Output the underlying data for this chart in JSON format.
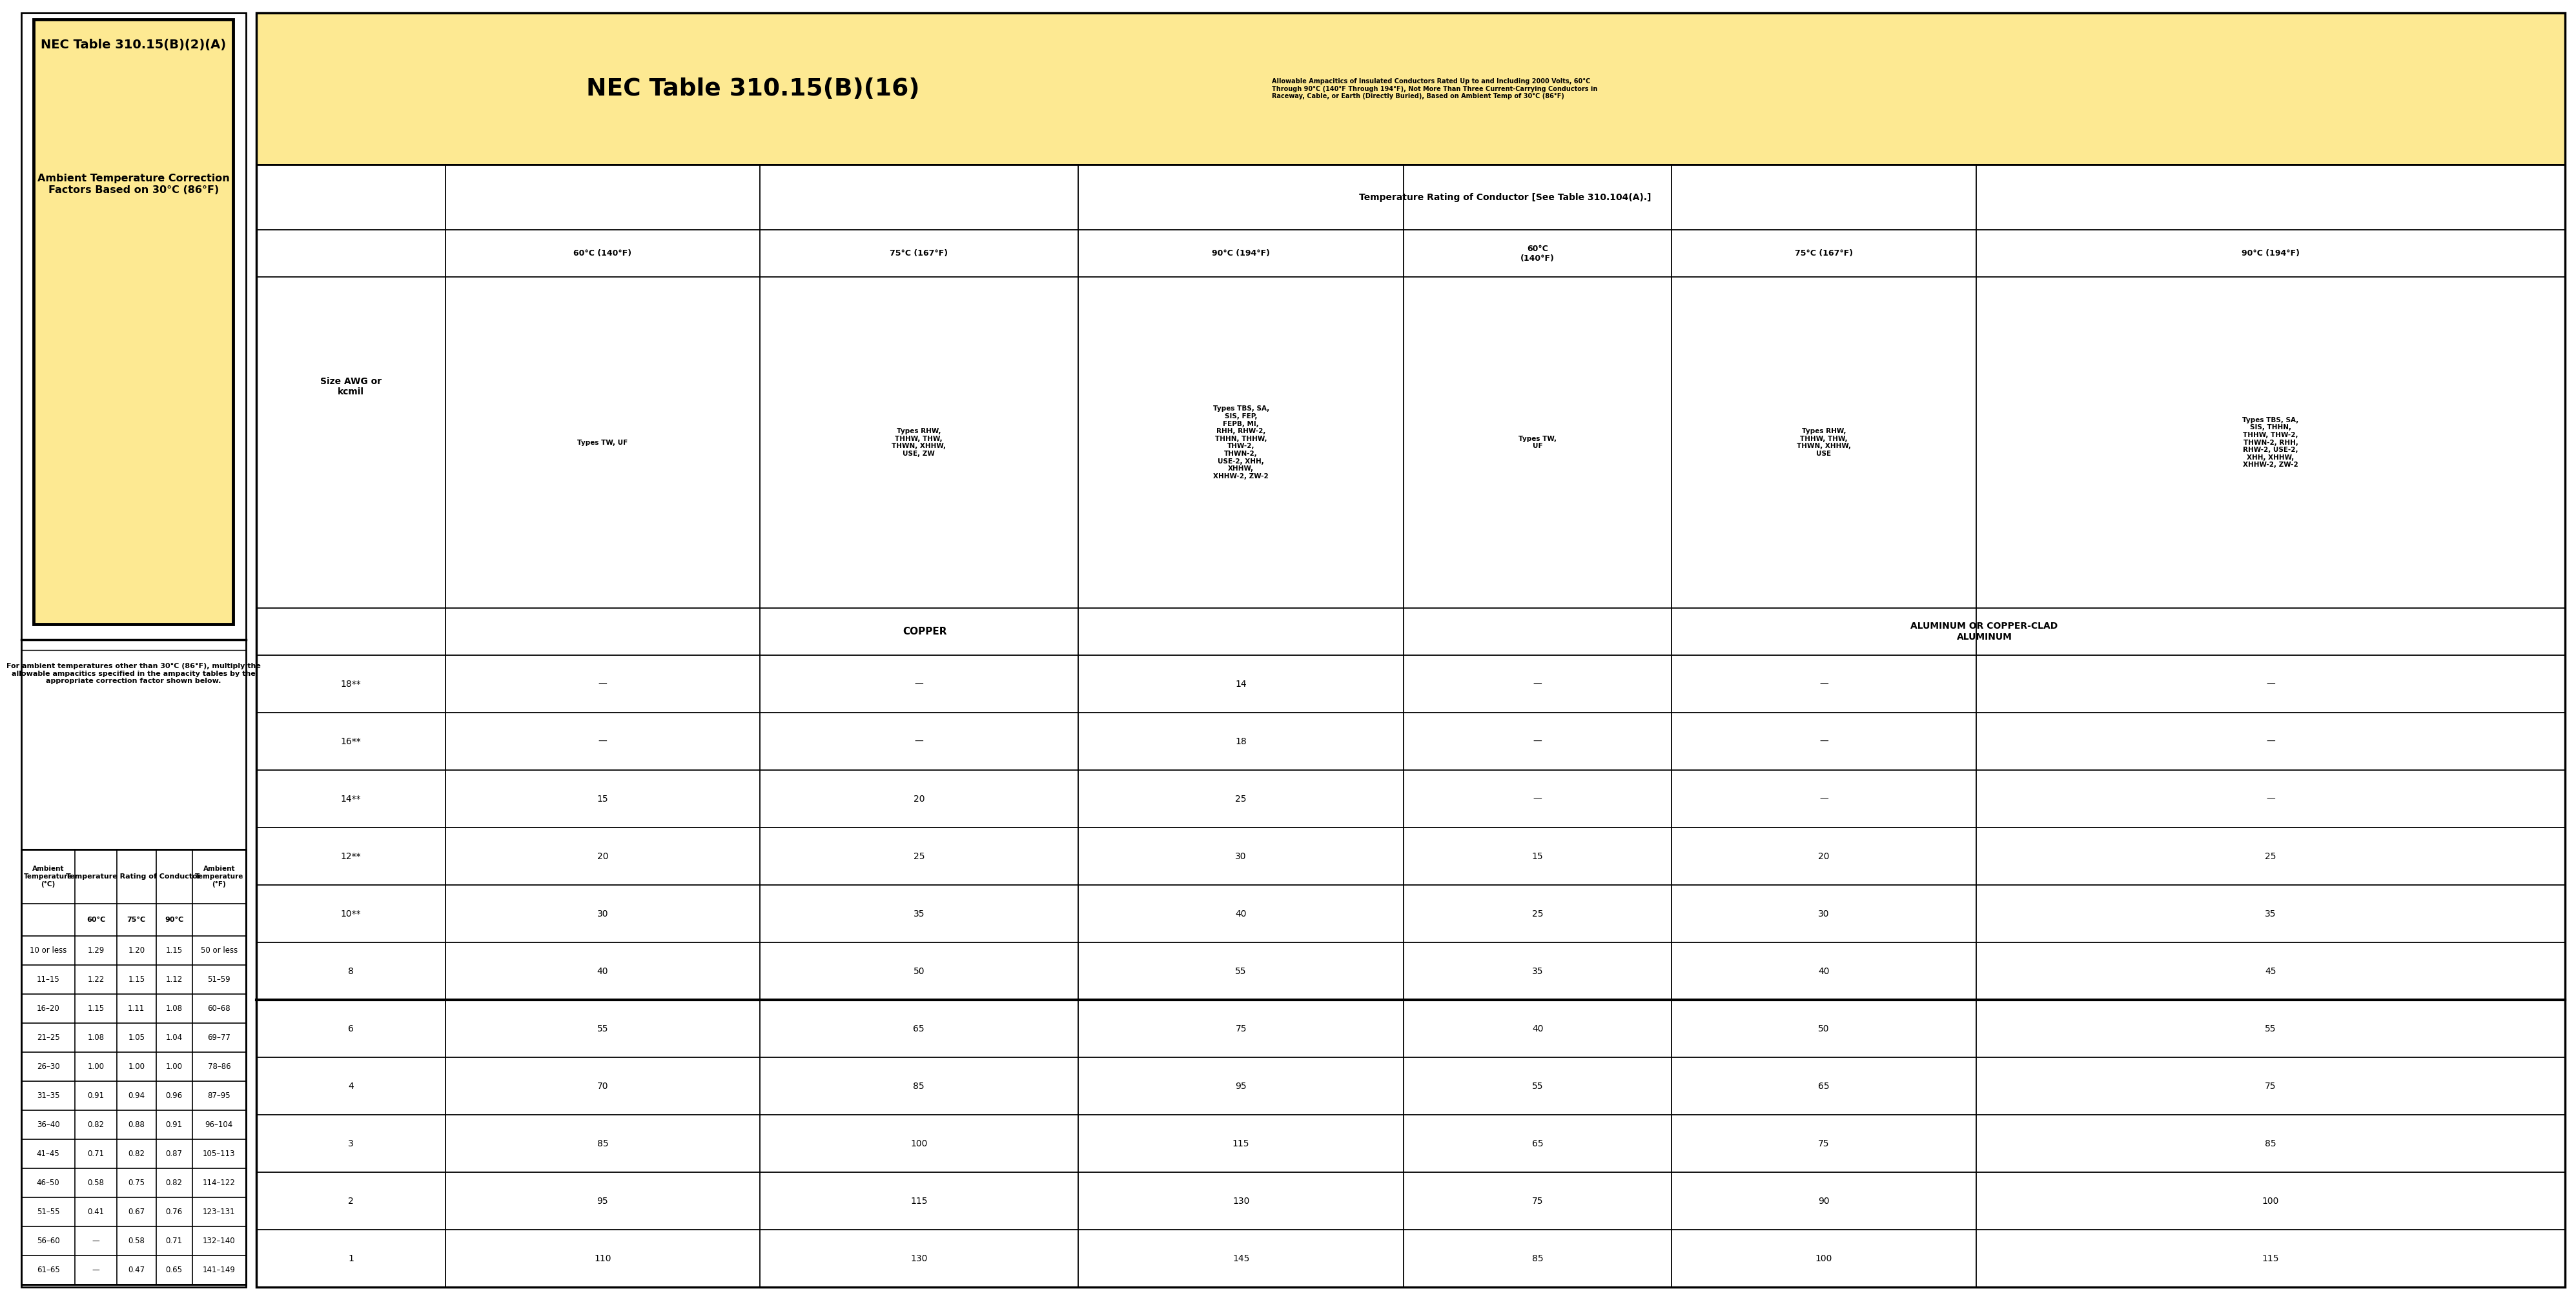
{
  "bg_color": "#ffffff",
  "left_panel_bg": "#fde992",
  "left_panel_border": "#000000",
  "left_title": "NEC Table 310.15(B)(2)(A)",
  "left_subtitle1": "Ambient Temperature Correction",
  "left_subtitle2": "Factors Based on 30°C (86°F)",
  "left_note": "For ambient temperatures other than 30°C (86°F), multiply the\nallowable ampacitics specified in the ampacity tables by the\nappropriate correction factor shown below.",
  "left_col_headers": [
    "Ambient\nTemperature\n(°C)",
    "Temperature Rating of Conductor",
    "Ambient\nTemperature\n(°F)"
  ],
  "left_sub_headers": [
    "60°C",
    "75°C",
    "90°C"
  ],
  "left_rows": [
    [
      "10 or less",
      "1.29",
      "1.20",
      "1.15",
      "50 or less"
    ],
    [
      "11–15",
      "1.22",
      "1.15",
      "1.12",
      "51–59"
    ],
    [
      "16–20",
      "1.15",
      "1.11",
      "1.08",
      "60–68"
    ],
    [
      "21–25",
      "1.08",
      "1.05",
      "1.04",
      "69–77"
    ],
    [
      "26–30",
      "1.00",
      "1.00",
      "1.00",
      "78–86"
    ],
    [
      "31–35",
      "0.91",
      "0.94",
      "0.96",
      "87–95"
    ],
    [
      "36–40",
      "0.82",
      "0.88",
      "0.91",
      "96–104"
    ],
    [
      "41–45",
      "0.71",
      "0.82",
      "0.87",
      "105–113"
    ],
    [
      "46–50",
      "0.58",
      "0.75",
      "0.82",
      "114–122"
    ],
    [
      "51–55",
      "0.41",
      "0.67",
      "0.76",
      "123–131"
    ],
    [
      "56–60",
      "—",
      "0.58",
      "0.71",
      "132–140"
    ],
    [
      "61–65",
      "—",
      "0.47",
      "0.65",
      "141–149"
    ]
  ],
  "right_title": "NEC Table 310.15(B)(16)",
  "right_subtitle": "Allowable Ampacitics of Insulated Conductors Rated Up to and Including 2000 Volts, 60°C\nThrough 90°C (140°F Through 194°F), Not More Than Three Current-Carrying Conductors in\nRaceway, Cable, or Earth (Directly Buried), Based on Ambient Temp of 30°C (86°F)",
  "right_col1_header": "Size AWG or\nkcmil",
  "right_temp_header": "Temperature Rating of Conductor [See Table 310.104(A).]",
  "right_col_headers": [
    "60°C (140°F)",
    "75°C (167°F)",
    "90°C (194°F)",
    "60°C\n(140°F)",
    "75°C (167°F)",
    "90°C (194°F)"
  ],
  "right_type_headers": [
    "Types TW, UF",
    "Types RHW,\nTHHW, THW,\nTHWN, XHHW,\nUSE, ZW",
    "Types TBS, SA,\nSIS, FEP,\nFEPB, MI,\nRHH, RHW-2,\nTHHN, THHW,\nTHW-2,\nTHWN-2,\nUSE-2, XHH,\nXHHW,\nXHHW-2, ZW-2",
    "Types TW,\nUF",
    "Types RHW,\nTHHW, THW,\nTHWN, XHHW,\nUSE",
    "Types TBS, SA,\nSIS, THHN,\nTHHW, THW-2,\nTHWN-2, RHH,\nRHW-2, USE-2,\nXHH, XHHW,\nXHHW-2, ZW-2"
  ],
  "right_section_headers": [
    "COPPER",
    "ALUMINUM OR COPPER-CLAD\nALUMINUM"
  ],
  "right_rows": [
    [
      "18**",
      "—",
      "—",
      "14",
      "—",
      "—",
      "—"
    ],
    [
      "16**",
      "—",
      "—",
      "18",
      "—",
      "—",
      "—"
    ],
    [
      "14**",
      "15",
      "20",
      "25",
      "—",
      "—",
      "—"
    ],
    [
      "12**",
      "20",
      "25",
      "30",
      "15",
      "20",
      "25"
    ],
    [
      "10**",
      "30",
      "35",
      "40",
      "25",
      "30",
      "35"
    ],
    [
      "8",
      "40",
      "50",
      "55",
      "35",
      "40",
      "45"
    ],
    [
      "6",
      "55",
      "65",
      "75",
      "40",
      "50",
      "55"
    ],
    [
      "4",
      "70",
      "85",
      "95",
      "55",
      "65",
      "75"
    ],
    [
      "3",
      "85",
      "100",
      "115",
      "65",
      "75",
      "85"
    ],
    [
      "2",
      "95",
      "115",
      "130",
      "75",
      "90",
      "100"
    ],
    [
      "1",
      "110",
      "130",
      "145",
      "85",
      "100",
      "115"
    ]
  ]
}
